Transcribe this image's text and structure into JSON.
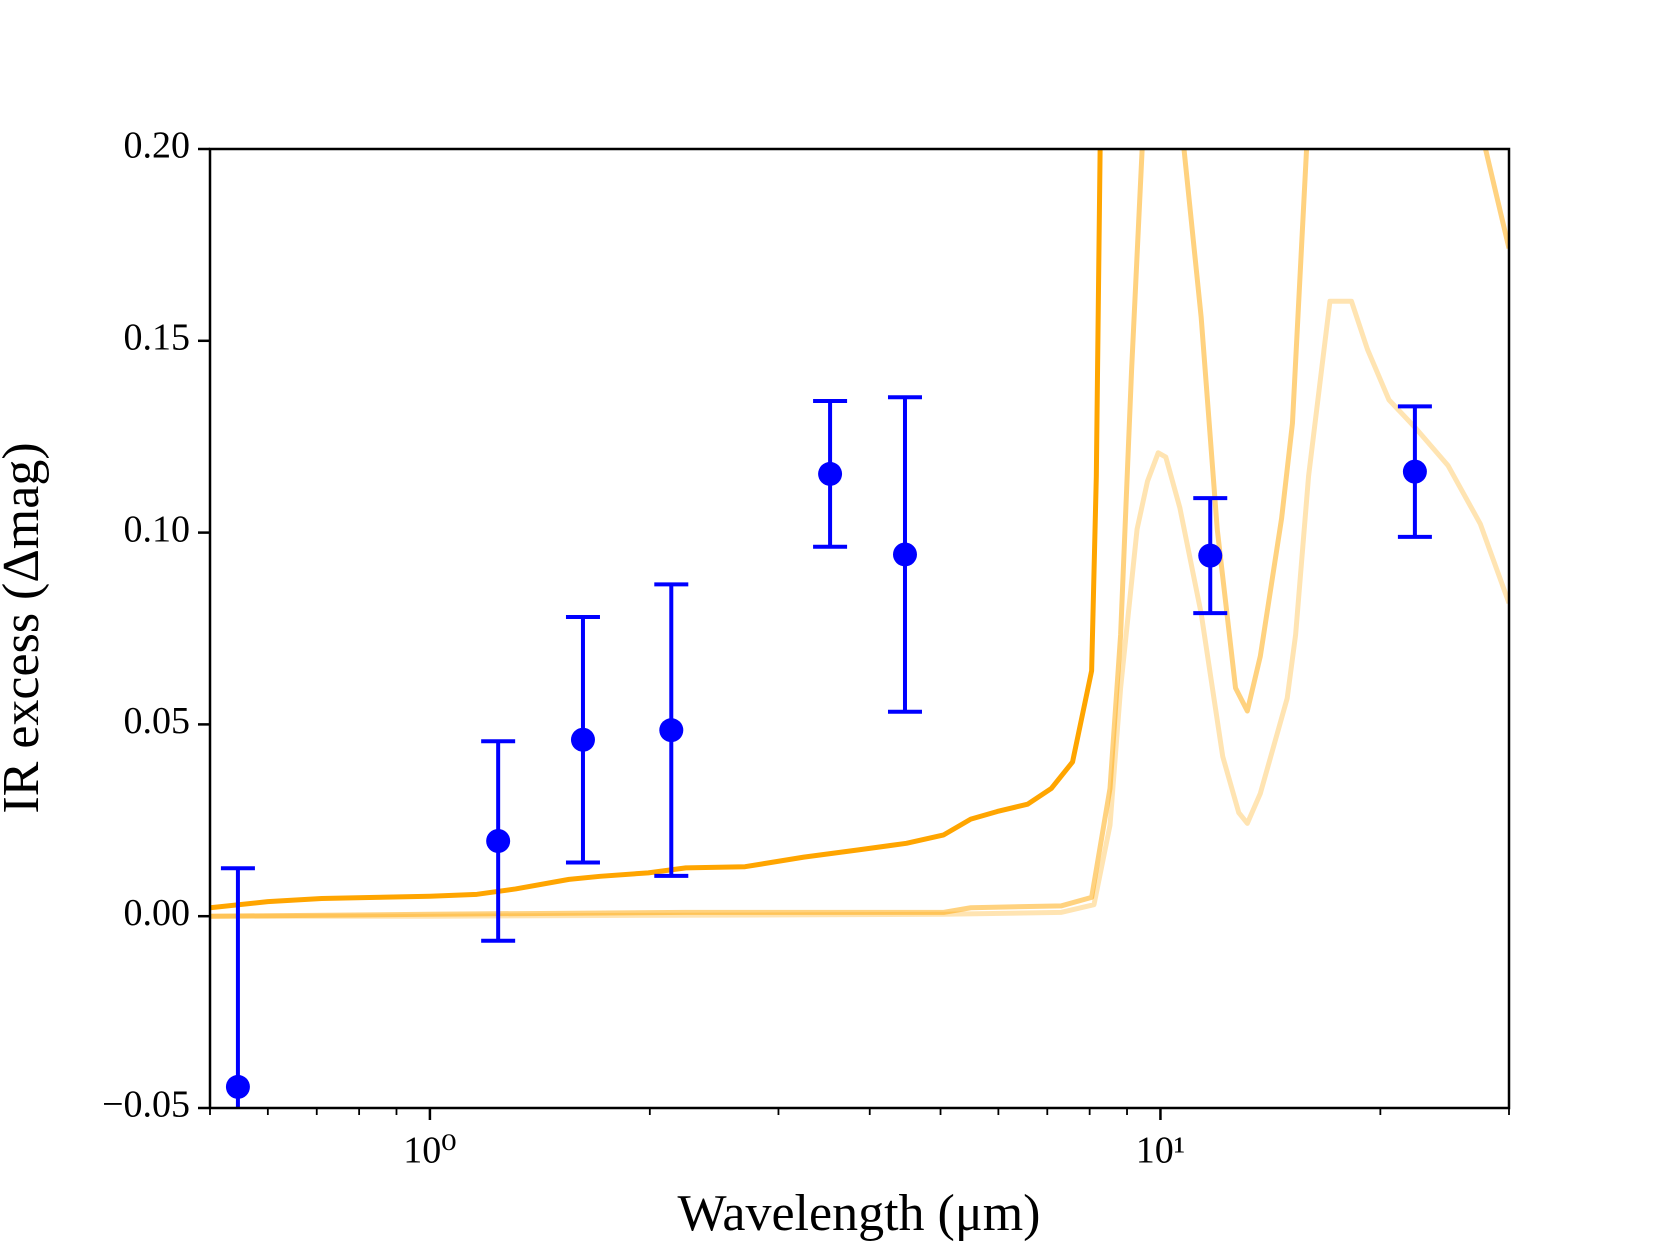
{
  "chart_data": {
    "type": "line",
    "xlabel": "Wavelength (μm)",
    "ylabel": "IR excess (Δmag)",
    "xscale": "log",
    "xlim": [
      0.5,
      30
    ],
    "xticks": [
      {
        "value": 1,
        "label": "10⁰"
      },
      {
        "value": 10,
        "label": "10¹"
      }
    ],
    "xticks_minor": [
      0.5,
      0.6,
      0.7,
      0.8,
      0.9,
      2,
      3,
      4,
      5,
      6,
      7,
      8,
      9,
      20,
      30
    ],
    "ylim": [
      -0.05,
      0.2
    ],
    "yticks": [
      {
        "value": -0.05,
        "label": "−0.05"
      },
      {
        "value": 0,
        "label": "0.00"
      },
      {
        "value": 0.05,
        "label": "0.05"
      },
      {
        "value": 0.1,
        "label": "0.10"
      },
      {
        "value": 0.15,
        "label": "0.15"
      },
      {
        "value": 0.2,
        "label": "0.20"
      }
    ],
    "grid": false,
    "series": [
      {
        "color": "#ffa500",
        "opacity": 1,
        "x": [
          0.5,
          0.6,
          0.711,
          0.842,
          1.0,
          1.16,
          1.31,
          1.55,
          1.71,
          1.99,
          2.24,
          2.7,
          3.25,
          3.86,
          4.49,
          5.05,
          5.5,
          5.98,
          6.58,
          7.09,
          7.58,
          8.05,
          8.17,
          8.28
        ],
        "values": [
          0.0022,
          0.0038,
          0.0046,
          0.0049,
          0.0052,
          0.0057,
          0.0071,
          0.0096,
          0.0104,
          0.0113,
          0.0126,
          0.0129,
          0.0154,
          0.0173,
          0.019,
          0.0212,
          0.0253,
          0.0273,
          0.0292,
          0.0333,
          0.0402,
          0.064,
          0.1147,
          0.21
        ]
      },
      {
        "color": "#ffa500",
        "opacity": 0.5,
        "x": [
          0.5,
          1.0,
          2.24,
          5.05,
          5.5,
          7.32,
          8.05,
          8.53,
          8.82,
          9.13,
          9.44,
          9.93,
          10.77,
          11.37,
          11.96,
          12.67,
          13.15,
          13.7,
          14.65,
          15.16,
          15.85,
          20.9,
          27.86,
          30
        ],
        "values": [
          0.0,
          0.0005,
          0.001,
          0.001,
          0.0022,
          0.0027,
          0.0049,
          0.0333,
          0.0733,
          0.1423,
          0.2,
          0.3,
          0.2,
          0.1561,
          0.1009,
          0.0595,
          0.0535,
          0.0678,
          0.1037,
          0.1285,
          0.2,
          0.3,
          0.2,
          0.1741
        ]
      },
      {
        "color": "#ffa500",
        "opacity": 0.3,
        "x": [
          0.5,
          1.0,
          5.05,
          7.32,
          8.11,
          8.53,
          8.82,
          9.29,
          9.6,
          9.93,
          10.17,
          10.63,
          11.37,
          12.17,
          12.8,
          13.15,
          13.7,
          14.91,
          15.31,
          15.95,
          17.06,
          18.26,
          19.2,
          20.55,
          22.36,
          24.75,
          27.4,
          30
        ],
        "values": [
          0.0,
          0.0,
          0.0005,
          0.001,
          0.003,
          0.0237,
          0.0595,
          0.1009,
          0.1134,
          0.1208,
          0.1197,
          0.1065,
          0.0789,
          0.0416,
          0.027,
          0.0242,
          0.032,
          0.0568,
          0.0733,
          0.1147,
          0.1603,
          0.1603,
          0.1478,
          0.1346,
          0.1272,
          0.1175,
          0.1023,
          0.0816
        ]
      }
    ],
    "points": {
      "color": "#0000ff",
      "x": [
        0.546,
        1.24,
        1.62,
        2.14,
        3.53,
        4.47,
        11.7,
        22.3
      ],
      "values": [
        -0.0445,
        0.0196,
        0.046,
        0.0485,
        0.1153,
        0.0943,
        0.094,
        0.1159
      ],
      "errors": [
        0.057,
        0.026,
        0.032,
        0.038,
        0.019,
        0.041,
        0.015,
        0.017
      ]
    }
  }
}
